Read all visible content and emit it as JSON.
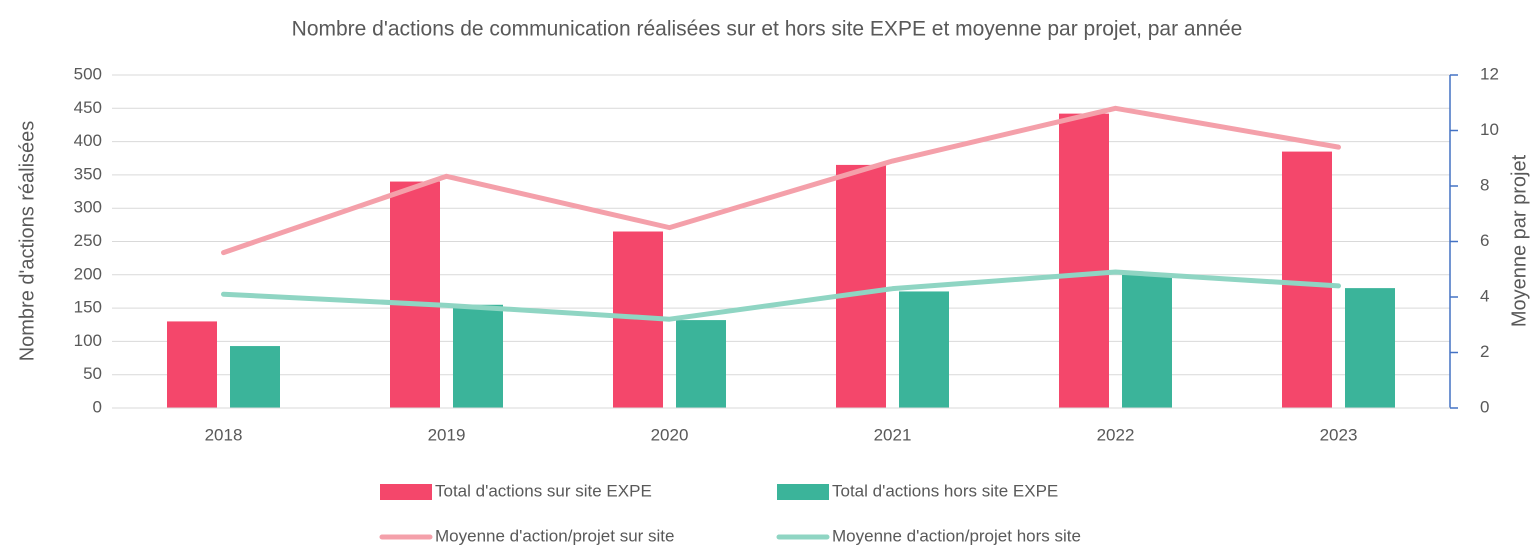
{
  "chart_data": {
    "type": "bar_line",
    "title": "Nombre d'actions de communication réalisées sur et hors site EXPE et moyenne par projet, par année",
    "y_label": "Nombre d'actions réalisées",
    "y2_label": "Moyenne par projet",
    "categories": [
      "2018",
      "2019",
      "2020",
      "2021",
      "2022",
      "2023"
    ],
    "series": [
      {
        "name": "Total d'actions sur site EXPE",
        "type": "bar",
        "color": "#f4476b",
        "values": [
          130,
          340,
          265,
          365,
          442,
          385
        ]
      },
      {
        "name": "Total d'actions hors site EXPE",
        "type": "bar",
        "color": "#3bb49a",
        "values": [
          93,
          155,
          132,
          175,
          200,
          180
        ]
      },
      {
        "name": "Moyenne d'action/projet sur site",
        "type": "line",
        "axis": "y2",
        "color": "#f4a0aa",
        "values": [
          5.6,
          8.35,
          6.5,
          8.9,
          10.8,
          9.4
        ]
      },
      {
        "name": "Moyenne d'action/projet hors site",
        "type": "line",
        "axis": "y2",
        "color": "#8fd5c3",
        "values": [
          4.1,
          3.7,
          3.2,
          4.3,
          4.9,
          4.4
        ]
      }
    ],
    "ylim": [
      0,
      500
    ],
    "yticks": [
      0,
      50,
      100,
      150,
      200,
      250,
      300,
      350,
      400,
      450,
      500
    ],
    "y2lim": [
      0,
      12
    ],
    "y2ticks": [
      0,
      2,
      4,
      6,
      8,
      10,
      12
    ],
    "grid": true
  }
}
